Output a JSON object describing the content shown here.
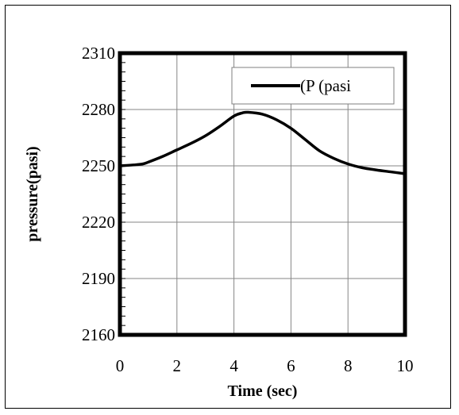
{
  "chart_data": {
    "type": "line",
    "title": "",
    "xlabel": "Time (sec)",
    "ylabel": "pressure(pasi)",
    "xlim": [
      0,
      10
    ],
    "ylim": [
      2160,
      2310
    ],
    "x_ticks": [
      0,
      2,
      4,
      6,
      8,
      10
    ],
    "y_ticks": [
      2160,
      2190,
      2220,
      2250,
      2280,
      2310
    ],
    "x_tick_labels": [
      "0",
      "2",
      "4",
      "6",
      "8",
      "10"
    ],
    "y_tick_labels": [
      "2160",
      "2190",
      "2220",
      "2250",
      "2280",
      "2310"
    ],
    "grid": true,
    "legend_position": "top-right",
    "series": [
      {
        "name": "(P (pasi",
        "color": "#000000",
        "x": [
          0,
          0.5,
          0.8,
          1,
          1.5,
          2,
          2.5,
          3,
          3.5,
          4,
          4.3,
          4.5,
          5,
          5.5,
          6,
          6.5,
          7,
          7.5,
          8,
          8.5,
          9,
          9.5,
          10
        ],
        "y": [
          2250,
          2250.5,
          2251,
          2252,
          2255,
          2258.5,
          2262,
          2266,
          2271,
          2276.5,
          2278.2,
          2278.5,
          2277.5,
          2274.5,
          2270,
          2264,
          2258,
          2254,
          2251,
          2249,
          2247.8,
          2246.8,
          2245.8
        ]
      }
    ]
  }
}
